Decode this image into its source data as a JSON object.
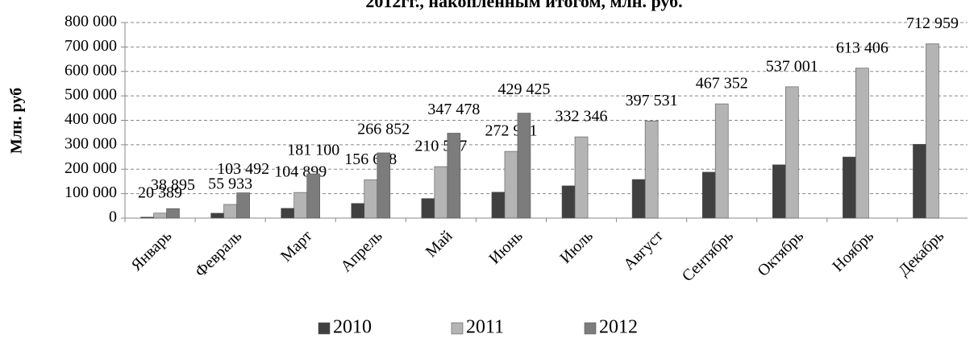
{
  "chart_data": {
    "type": "bar",
    "title": "2012гг., накопленным итогом, млн. руб.",
    "y_label": "Млн. руб",
    "categories": [
      "Январь",
      "Февраль",
      "Март",
      "Апрель",
      "Май",
      "Июнь",
      "Июль",
      "Август",
      "Сентябрь",
      "Октябрь",
      "Ноябрь",
      "Декабрь"
    ],
    "series": [
      {
        "name": "2010",
        "color": "#404040",
        "values": [
          4000,
          20000,
          40000,
          60000,
          80000,
          106000,
          132000,
          158000,
          188000,
          218000,
          250000,
          302000
        ]
      },
      {
        "name": "2011",
        "color": "#b4b4b4",
        "values": [
          20389,
          55933,
          104899,
          156648,
          210577,
          272961,
          332346,
          397531,
          467352,
          537001,
          613406,
          712959
        ],
        "value_labels": [
          "20 389",
          "55 933",
          "104 899",
          "156 648",
          "210 577",
          "272 961",
          "332 346",
          "397 531",
          "467 352",
          "537 001",
          "613 406",
          "712 959"
        ]
      },
      {
        "name": "2012",
        "color": "#7c7c7c",
        "values": [
          38895,
          103492,
          181100,
          266852,
          347478,
          429425,
          null,
          null,
          null,
          null,
          null,
          null
        ],
        "value_labels": [
          "38 895",
          "103 492",
          "181 100",
          "266 852",
          "347 478",
          "429 425",
          null,
          null,
          null,
          null,
          null,
          null
        ]
      }
    ],
    "ylim": [
      0,
      800000
    ],
    "yticks": [
      0,
      {
        "value": 100000,
        "label": "100 000"
      },
      {
        "value": 200000,
        "label": "200 000"
      },
      {
        "value": 300000,
        "label": "300 000"
      },
      {
        "value": 400000,
        "label": "400 000"
      },
      {
        "value": 500000,
        "label": "500 000"
      },
      {
        "value": 600000,
        "label": "600 000"
      },
      {
        "value": 700000,
        "label": "700 000"
      },
      {
        "value": 800000,
        "label": "800 000"
      }
    ],
    "grid": true,
    "legend": "bottom"
  }
}
